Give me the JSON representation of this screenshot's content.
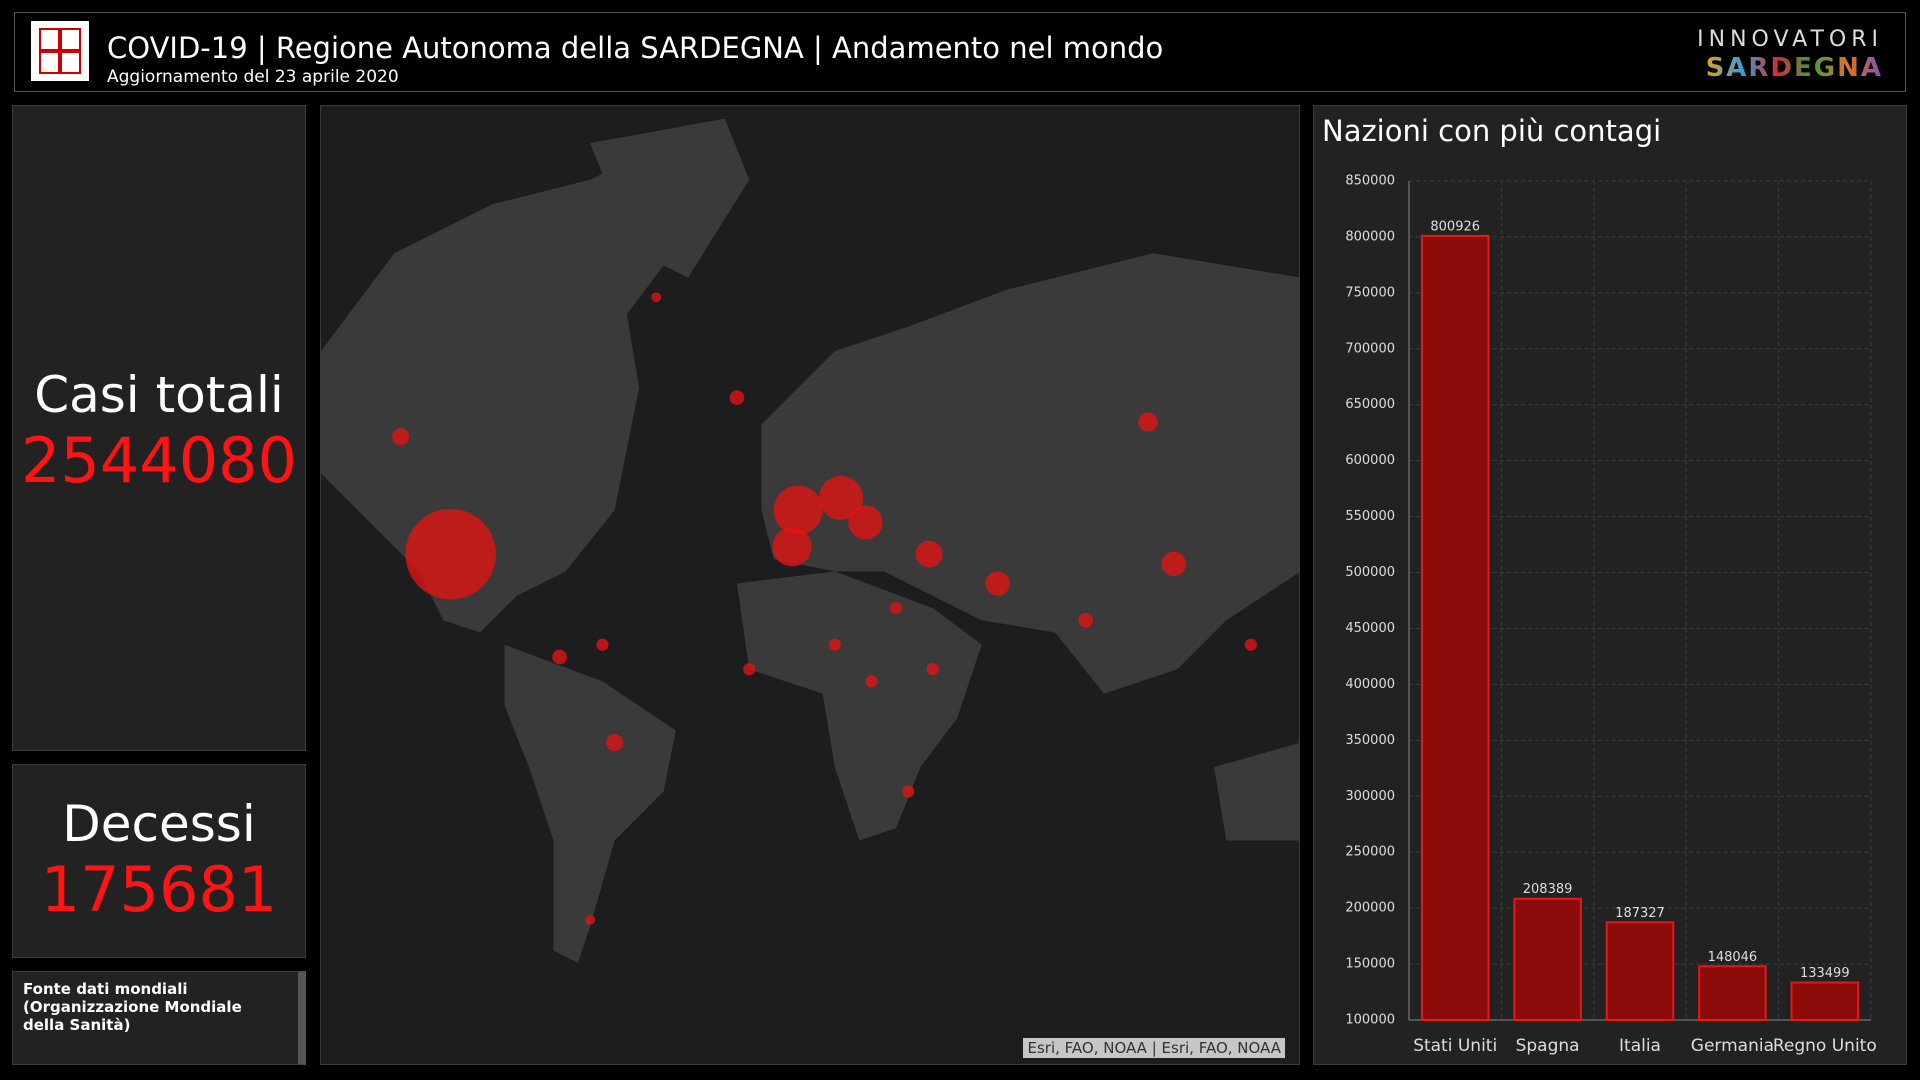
{
  "header": {
    "title": "COVID-19 | Regione Autonoma della SARDEGNA | Andamento nel mondo",
    "subtitle": "Aggiornamento del 23 aprile 2020",
    "brand_top": "INNOVATORI",
    "brand_bottom": "SARDEGNA"
  },
  "stats": {
    "cases_label": "Casi totali",
    "cases_value": 2544080,
    "deaths_label": "Decessi",
    "deaths_value": 175681
  },
  "source": "Fonte dati mondiali (Organizzazione Mondiale della Sanità)",
  "map_attribution": "Esri, FAO, NOAA | Esri, FAO, NOAA",
  "chart_data": {
    "type": "bar",
    "title": "Nazioni con più contagi",
    "categories": [
      "Stati Uniti",
      "Spagna",
      "Italia",
      "Germania",
      "Regno Unito"
    ],
    "values": [
      800926,
      208389,
      187327,
      148046,
      133499
    ],
    "color": "#8c0c0c",
    "edge_color": "#e81818",
    "ylim": [
      100000,
      850000
    ],
    "yticks": [
      100000,
      150000,
      200000,
      250000,
      300000,
      350000,
      400000,
      450000,
      500000,
      550000,
      600000,
      650000,
      700000,
      750000,
      800000,
      850000
    ],
    "grid": true
  }
}
